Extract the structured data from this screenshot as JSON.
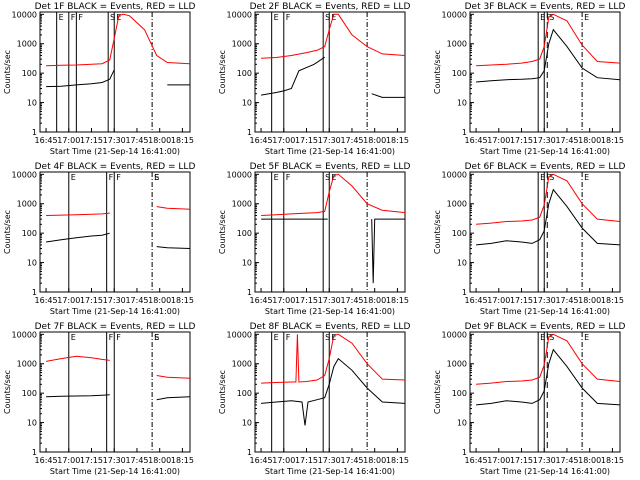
{
  "chart_data": {
    "type": "line",
    "layout": "3x3 grid",
    "shared": {
      "xlabel": "Start Time (21-Sep-14 16:41:00)",
      "ylabel": "Counts/sec",
      "x_ticks": [
        "16:45",
        "17:00",
        "17:15",
        "17:30",
        "17:45",
        "18:00",
        "18:15"
      ],
      "xlim": [
        "16:41",
        "18:20"
      ],
      "y_scale": "log",
      "ylim": [
        1,
        12000
      ],
      "y_ticks": [
        "1",
        "10",
        "100",
        "1000",
        "10000"
      ],
      "series_colors": {
        "events": "#000000",
        "lld": "#ff0000"
      }
    },
    "panels": [
      {
        "title": "Det 1F BLACK = Events, RED = LLD",
        "markers": {
          "solid": [
            "16:52",
            "17:00",
            "17:05",
            "17:26",
            "17:30"
          ],
          "dashdot": [
            "17:55"
          ]
        },
        "labels": [
          "E",
          "F",
          "F",
          "S",
          "E"
        ],
        "events": {
          "t": [
            "16:45",
            "16:55",
            "17:05",
            "17:15",
            "17:22",
            "17:27",
            "17:30",
            "17:33",
            "17:36",
            "17:40",
            "17:50",
            "17:58",
            "18:05",
            "18:20"
          ],
          "v": [
            35,
            36,
            40,
            44,
            48,
            62,
            130,
            0,
            0,
            0,
            0,
            0,
            40,
            40
          ]
        },
        "lld": {
          "t": [
            "16:45",
            "16:55",
            "17:05",
            "17:15",
            "17:22",
            "17:27",
            "17:30",
            "17:33",
            "17:36",
            "17:40",
            "17:50",
            "17:58",
            "18:05",
            "18:20"
          ],
          "v": [
            180,
            185,
            190,
            200,
            210,
            280,
            1500,
            9000,
            10000,
            9000,
            3000,
            400,
            230,
            210
          ]
        }
      },
      {
        "title": "Det 2F BLACK = Events, RED = LLD",
        "markers": {
          "solid": [
            "16:52",
            "17:00",
            "17:26",
            "17:30"
          ],
          "dashdot": [
            "17:55"
          ]
        },
        "labels": [
          "E",
          "F",
          "S",
          "E"
        ],
        "events": {
          "t": [
            "16:45",
            "16:55",
            "17:00",
            "17:05",
            "17:10",
            "17:20",
            "17:27",
            "17:30",
            "17:55",
            "17:58",
            "18:05",
            "18:20"
          ],
          "v": [
            18,
            22,
            25,
            30,
            120,
            200,
            350,
            0,
            0,
            20,
            15,
            15
          ]
        },
        "lld": {
          "t": [
            "16:45",
            "16:55",
            "17:05",
            "17:15",
            "17:22",
            "17:27",
            "17:30",
            "17:33",
            "17:36",
            "17:45",
            "17:55",
            "18:05",
            "18:20"
          ],
          "v": [
            320,
            340,
            400,
            500,
            600,
            800,
            3000,
            10000,
            10000,
            2000,
            800,
            450,
            400
          ]
        }
      },
      {
        "title": "Det 3F BLACK = Events, RED = LLD",
        "markers": {
          "solid": [
            "17:26",
            "17:30"
          ],
          "dashed": [
            "17:32"
          ],
          "dashdot": [
            "17:55"
          ]
        },
        "labels": [
          "E",
          "F",
          "S",
          "E"
        ],
        "events": {
          "t": [
            "16:45",
            "16:55",
            "17:05",
            "17:15",
            "17:22",
            "17:27",
            "17:30",
            "17:33",
            "17:36",
            "17:45",
            "17:55",
            "18:05",
            "18:20"
          ],
          "v": [
            50,
            55,
            60,
            62,
            65,
            70,
            120,
            1000,
            3000,
            800,
            150,
            70,
            60
          ]
        },
        "lld": {
          "t": [
            "16:45",
            "16:55",
            "17:05",
            "17:15",
            "17:22",
            "17:27",
            "17:30",
            "17:33",
            "17:36",
            "17:45",
            "17:55",
            "18:05",
            "18:20"
          ],
          "v": [
            180,
            190,
            200,
            220,
            250,
            300,
            800,
            8000,
            10000,
            6000,
            900,
            250,
            220
          ]
        }
      },
      {
        "title": "Det 4F BLACK = Events, RED = LLD",
        "markers": {
          "solid": [
            "17:00",
            "17:25",
            "17:30"
          ],
          "dashdot": [
            "17:55"
          ]
        },
        "labels": [
          "E",
          "F",
          "F",
          "S",
          "E"
        ],
        "events": {
          "t": [
            "16:45",
            "16:55",
            "17:05",
            "17:15",
            "17:22",
            "17:27",
            "17:30",
            "17:55",
            "17:58",
            "18:05",
            "18:20"
          ],
          "v": [
            50,
            60,
            70,
            80,
            85,
            100,
            0,
            0,
            35,
            32,
            30
          ]
        },
        "lld": {
          "t": [
            "16:45",
            "16:55",
            "17:05",
            "17:15",
            "17:22",
            "17:27",
            "17:30",
            "17:55",
            "17:58",
            "18:05",
            "18:20"
          ],
          "v": [
            400,
            410,
            420,
            440,
            450,
            480,
            0,
            0,
            800,
            700,
            650
          ]
        }
      },
      {
        "title": "Det 5F BLACK = Events, RED = LLD",
        "markers": {
          "solid": [
            "16:52",
            "17:00",
            "17:26",
            "17:30"
          ],
          "dashdot": [
            "17:55"
          ]
        },
        "labels": [
          "E",
          "F",
          "S",
          "E"
        ],
        "events": {
          "t": [
            "16:45",
            "16:55",
            "17:05",
            "17:15",
            "17:22",
            "17:27",
            "17:29",
            "17:30",
            "17:57",
            "17:58",
            "17:59",
            "18:00",
            "18:05",
            "18:20"
          ],
          "v": [
            300,
            300,
            300,
            300,
            300,
            300,
            300,
            0,
            0,
            300,
            2,
            300,
            300,
            300
          ]
        },
        "lld": {
          "t": [
            "16:45",
            "16:55",
            "17:05",
            "17:15",
            "17:22",
            "17:27",
            "17:30",
            "17:33",
            "17:36",
            "17:45",
            "17:55",
            "18:05",
            "18:20"
          ],
          "v": [
            400,
            420,
            450,
            480,
            500,
            550,
            2500,
            9000,
            10000,
            4000,
            1000,
            600,
            500
          ]
        }
      },
      {
        "title": "Det 6F BLACK = Events, RED = LLD",
        "markers": {
          "solid": [
            "17:26",
            "17:30"
          ],
          "dashed": [
            "17:32"
          ],
          "dashdot": [
            "17:55"
          ]
        },
        "labels": [
          "E",
          "F",
          "S",
          "E"
        ],
        "events": {
          "t": [
            "16:45",
            "16:55",
            "17:05",
            "17:15",
            "17:22",
            "17:27",
            "17:30",
            "17:33",
            "17:36",
            "17:45",
            "17:55",
            "18:05",
            "18:20"
          ],
          "v": [
            40,
            45,
            55,
            50,
            45,
            60,
            120,
            1000,
            3000,
            800,
            150,
            45,
            40
          ]
        },
        "lld": {
          "t": [
            "16:45",
            "16:55",
            "17:05",
            "17:15",
            "17:22",
            "17:27",
            "17:30",
            "17:33",
            "17:36",
            "17:45",
            "17:55",
            "18:05",
            "18:20"
          ],
          "v": [
            200,
            220,
            250,
            260,
            280,
            350,
            900,
            8000,
            10000,
            6000,
            1000,
            300,
            250
          ]
        }
      },
      {
        "title": "Det 7F BLACK = Events, RED = LLD",
        "markers": {
          "solid": [
            "17:00",
            "17:25",
            "17:30"
          ],
          "dashdot": [
            "17:55"
          ]
        },
        "labels": [
          "E",
          "F",
          "F",
          "S",
          "E"
        ],
        "events": {
          "t": [
            "16:45",
            "16:55",
            "17:05",
            "17:15",
            "17:22",
            "17:27",
            "17:30",
            "17:55",
            "17:58",
            "18:05",
            "18:20"
          ],
          "v": [
            75,
            78,
            80,
            82,
            85,
            88,
            0,
            0,
            60,
            70,
            75
          ]
        },
        "lld": {
          "t": [
            "16:45",
            "16:55",
            "17:05",
            "17:15",
            "17:22",
            "17:27",
            "17:30",
            "17:55",
            "17:58",
            "18:05",
            "18:20"
          ],
          "v": [
            1200,
            1500,
            1800,
            1600,
            1400,
            1300,
            0,
            0,
            400,
            350,
            320
          ]
        }
      },
      {
        "title": "Det 8F BLACK = Events, RED = LLD",
        "markers": {
          "solid": [
            "16:52",
            "17:00",
            "17:26",
            "17:30"
          ],
          "dashdot": [
            "17:55"
          ]
        },
        "labels": [
          "E",
          "F",
          "S",
          "E"
        ],
        "events": {
          "t": [
            "16:45",
            "16:55",
            "17:05",
            "17:12",
            "17:14",
            "17:16",
            "17:22",
            "17:27",
            "17:30",
            "17:33",
            "17:36",
            "17:45",
            "17:55",
            "18:05",
            "18:20"
          ],
          "v": [
            45,
            50,
            55,
            50,
            8,
            50,
            60,
            70,
            200,
            800,
            1500,
            600,
            150,
            50,
            45
          ]
        },
        "lld": {
          "t": [
            "16:45",
            "16:55",
            "17:05",
            "17:08",
            "17:09",
            "17:10",
            "17:15",
            "17:22",
            "17:27",
            "17:30",
            "17:33",
            "17:36",
            "17:45",
            "17:55",
            "18:05",
            "18:20"
          ],
          "v": [
            220,
            230,
            240,
            240,
            10000,
            240,
            250,
            280,
            400,
            1500,
            9000,
            10000,
            5000,
            1000,
            300,
            280
          ]
        }
      },
      {
        "title": "Det 9F BLACK = Events, RED = LLD",
        "markers": {
          "solid": [
            "17:26",
            "17:30"
          ],
          "dashed": [
            "17:32"
          ],
          "dashdot": [
            "17:55"
          ]
        },
        "labels": [
          "E",
          "F",
          "S",
          "E"
        ],
        "events": {
          "t": [
            "16:45",
            "16:55",
            "17:05",
            "17:15",
            "17:22",
            "17:27",
            "17:30",
            "17:33",
            "17:36",
            "17:45",
            "17:55",
            "18:05",
            "18:20"
          ],
          "v": [
            40,
            45,
            55,
            50,
            45,
            60,
            120,
            1000,
            3000,
            800,
            150,
            45,
            40
          ]
        },
        "lld": {
          "t": [
            "16:45",
            "16:55",
            "17:05",
            "17:15",
            "17:22",
            "17:27",
            "17:30",
            "17:33",
            "17:36",
            "17:45",
            "17:55",
            "18:05",
            "18:20"
          ],
          "v": [
            200,
            220,
            250,
            260,
            280,
            350,
            900,
            8000,
            10000,
            6000,
            1000,
            300,
            250
          ]
        }
      }
    ]
  }
}
